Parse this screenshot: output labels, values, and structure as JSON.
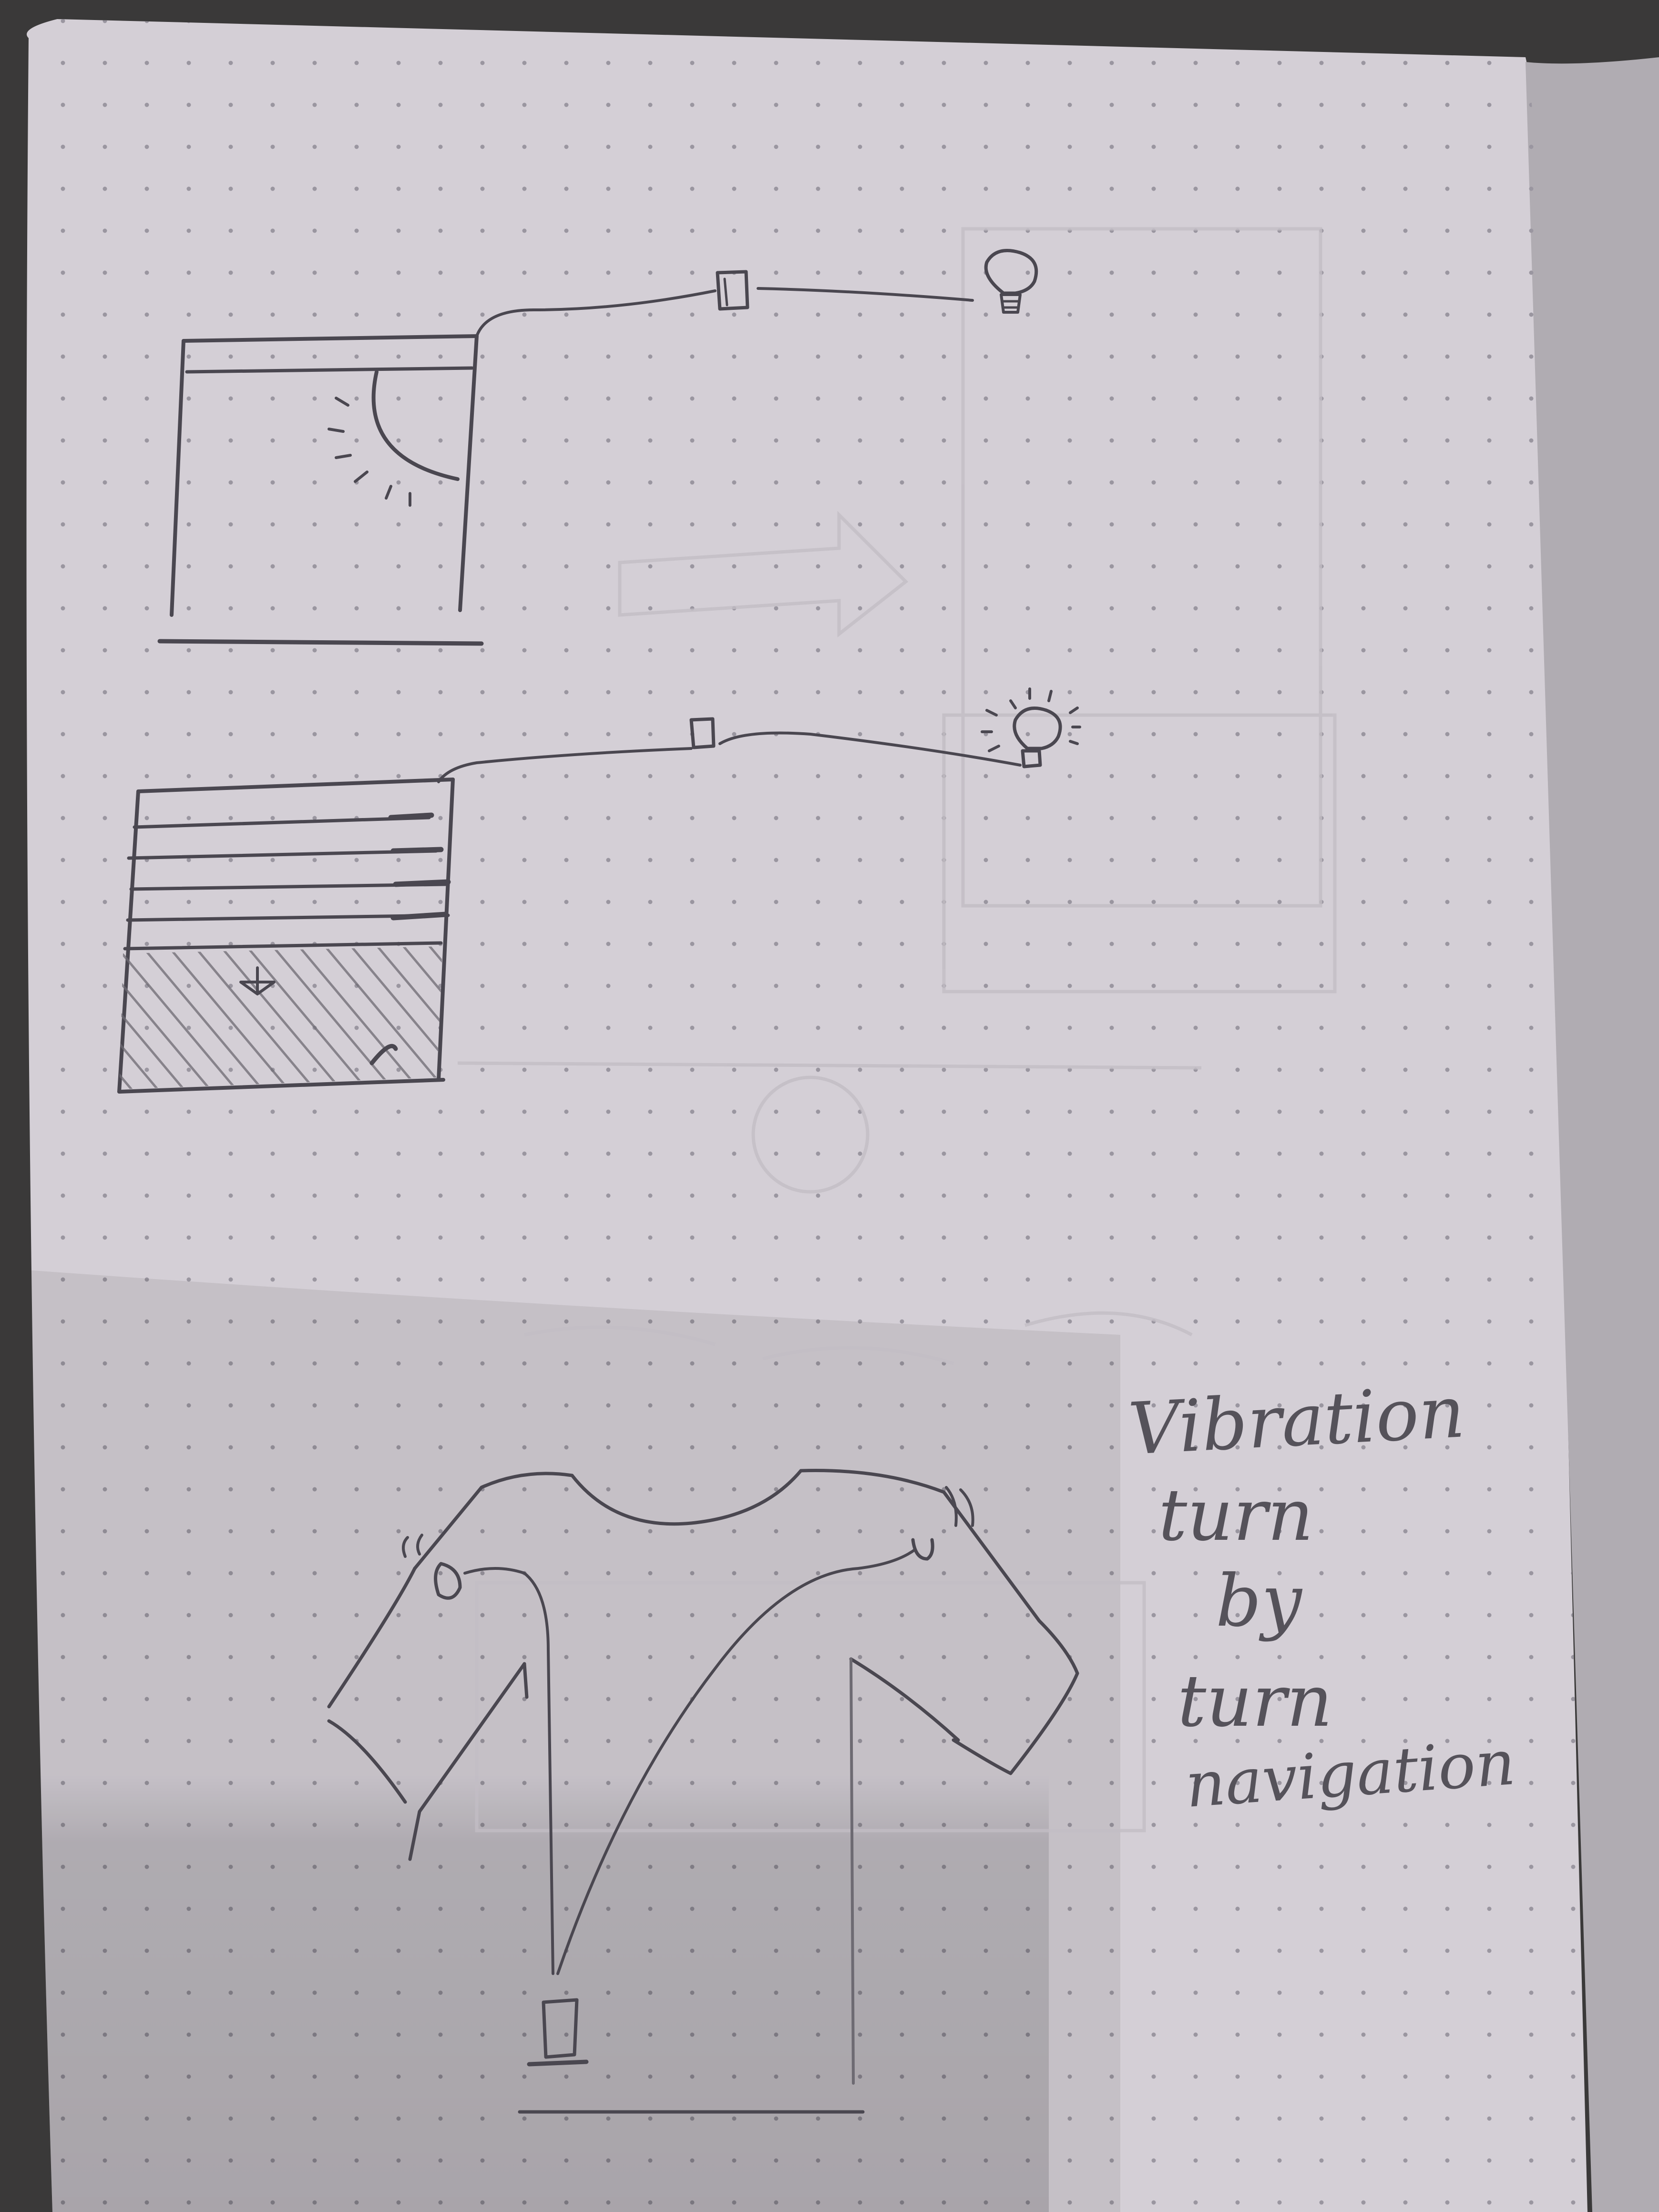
{
  "photo": {
    "subject": "Pencil sketches in a dotted notebook",
    "colors": {
      "background": "#3a3939",
      "page": "#d4cfd6",
      "page_shadow": "#b0acb2",
      "pencil": "#4a4750",
      "pencil_faint": "#6d6a72",
      "ghost": "#c2bdc4",
      "dot": "#9a96a0"
    }
  },
  "sketches": {
    "top": {
      "parts": [
        "window-frame",
        "sun",
        "wire",
        "controller-box",
        "light-bulb-off"
      ]
    },
    "middle": {
      "parts": [
        "water-tank",
        "wire",
        "controller-box",
        "light-bulb-on"
      ]
    },
    "bottom": {
      "parts": [
        "t-shirt",
        "vibration-motor-left",
        "vibration-motor-right",
        "controller-box"
      ]
    }
  },
  "annotation": {
    "lines": [
      "Vibration",
      "turn",
      "by",
      "turn",
      "navigation"
    ]
  }
}
